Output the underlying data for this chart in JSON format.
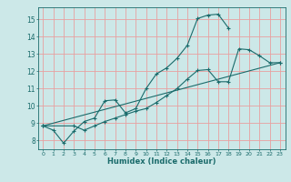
{
  "xlabel": "Humidex (Indice chaleur)",
  "bg_color": "#cce8e8",
  "grid_color": "#e8a0a0",
  "line_color": "#1a6b6b",
  "xlim": [
    -0.5,
    23.5
  ],
  "ylim": [
    7.5,
    15.7
  ],
  "yticks": [
    8,
    9,
    10,
    11,
    12,
    13,
    14,
    15
  ],
  "xticks": [
    0,
    1,
    2,
    3,
    4,
    5,
    6,
    7,
    8,
    9,
    10,
    11,
    12,
    13,
    14,
    15,
    16,
    17,
    18,
    19,
    20,
    21,
    22,
    23
  ],
  "line1_x": [
    0,
    1,
    2,
    3,
    4,
    5,
    6,
    7,
    8,
    9,
    10,
    11,
    12,
    13,
    14,
    15,
    16,
    17,
    18
  ],
  "line1_y": [
    8.85,
    8.6,
    7.85,
    8.55,
    9.1,
    9.3,
    10.3,
    10.35,
    9.6,
    9.85,
    11.0,
    11.85,
    12.2,
    12.75,
    13.5,
    15.05,
    15.25,
    15.3,
    14.5
  ],
  "line2_x": [
    0,
    3,
    4,
    5,
    6,
    7,
    8,
    9,
    10,
    11,
    12,
    13,
    14,
    15,
    16,
    17,
    18,
    19,
    20,
    21,
    22,
    23
  ],
  "line2_y": [
    8.85,
    8.85,
    8.6,
    8.85,
    9.1,
    9.3,
    9.5,
    9.7,
    9.85,
    10.2,
    10.6,
    11.0,
    11.55,
    12.05,
    12.1,
    11.4,
    11.4,
    13.3,
    13.25,
    12.9,
    12.5,
    12.5
  ],
  "line3_x": [
    0,
    23
  ],
  "line3_y": [
    8.85,
    12.5
  ]
}
